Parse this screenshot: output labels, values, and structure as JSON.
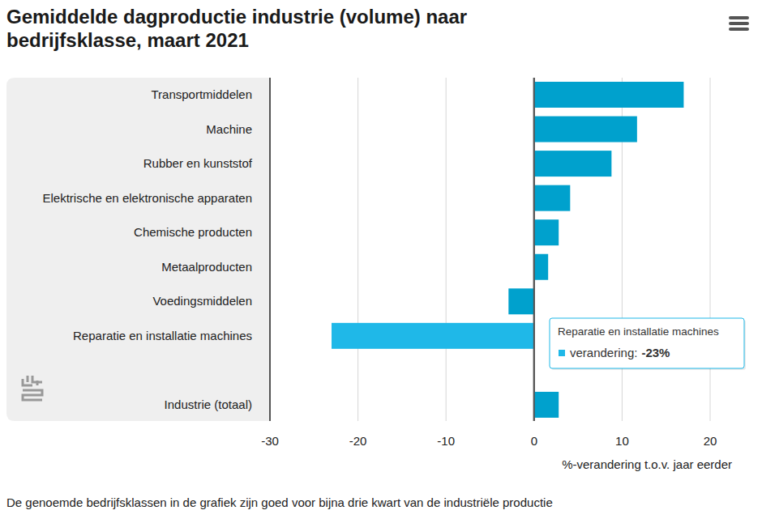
{
  "chart_data": {
    "type": "bar",
    "orientation": "horizontal",
    "title": "Gemiddelde dagproductie industrie (volume) naar bedrijfsklasse, maart 2021",
    "x_label": "%-verandering t.o.v. jaar eerder",
    "note": "De genoemde bedrijfsklassen in de grafiek zijn goed voor bijna drie kwart van de industriële productie",
    "categories": [
      "Transportmiddelen",
      "Machine",
      "Rubber en kunststof",
      "Elektrische en elektronische apparaten",
      "Chemische producten",
      "Metaalproducten",
      "Voedingsmiddelen",
      "Reparatie en installatie machines",
      null,
      "Industrie (totaal)"
    ],
    "values": [
      17,
      11.7,
      8.8,
      4.1,
      2.8,
      1.6,
      -2.9,
      -23,
      null,
      2.8
    ],
    "colors": [
      "#00a1cd",
      "#00a1cd",
      "#00a1cd",
      "#00a1cd",
      "#00a1cd",
      "#00a1cd",
      "#00a1cd",
      "#1fb8e8",
      "#00a1cd",
      "#00a1cd"
    ],
    "xlim": [
      -30,
      20
    ],
    "xticks": [
      -30,
      -20,
      -10,
      0,
      10,
      20
    ],
    "grid": true,
    "annotations": [
      {
        "title": "Reparatie en installatie machines",
        "label": "verandering:",
        "value_label": "-23%"
      }
    ]
  }
}
